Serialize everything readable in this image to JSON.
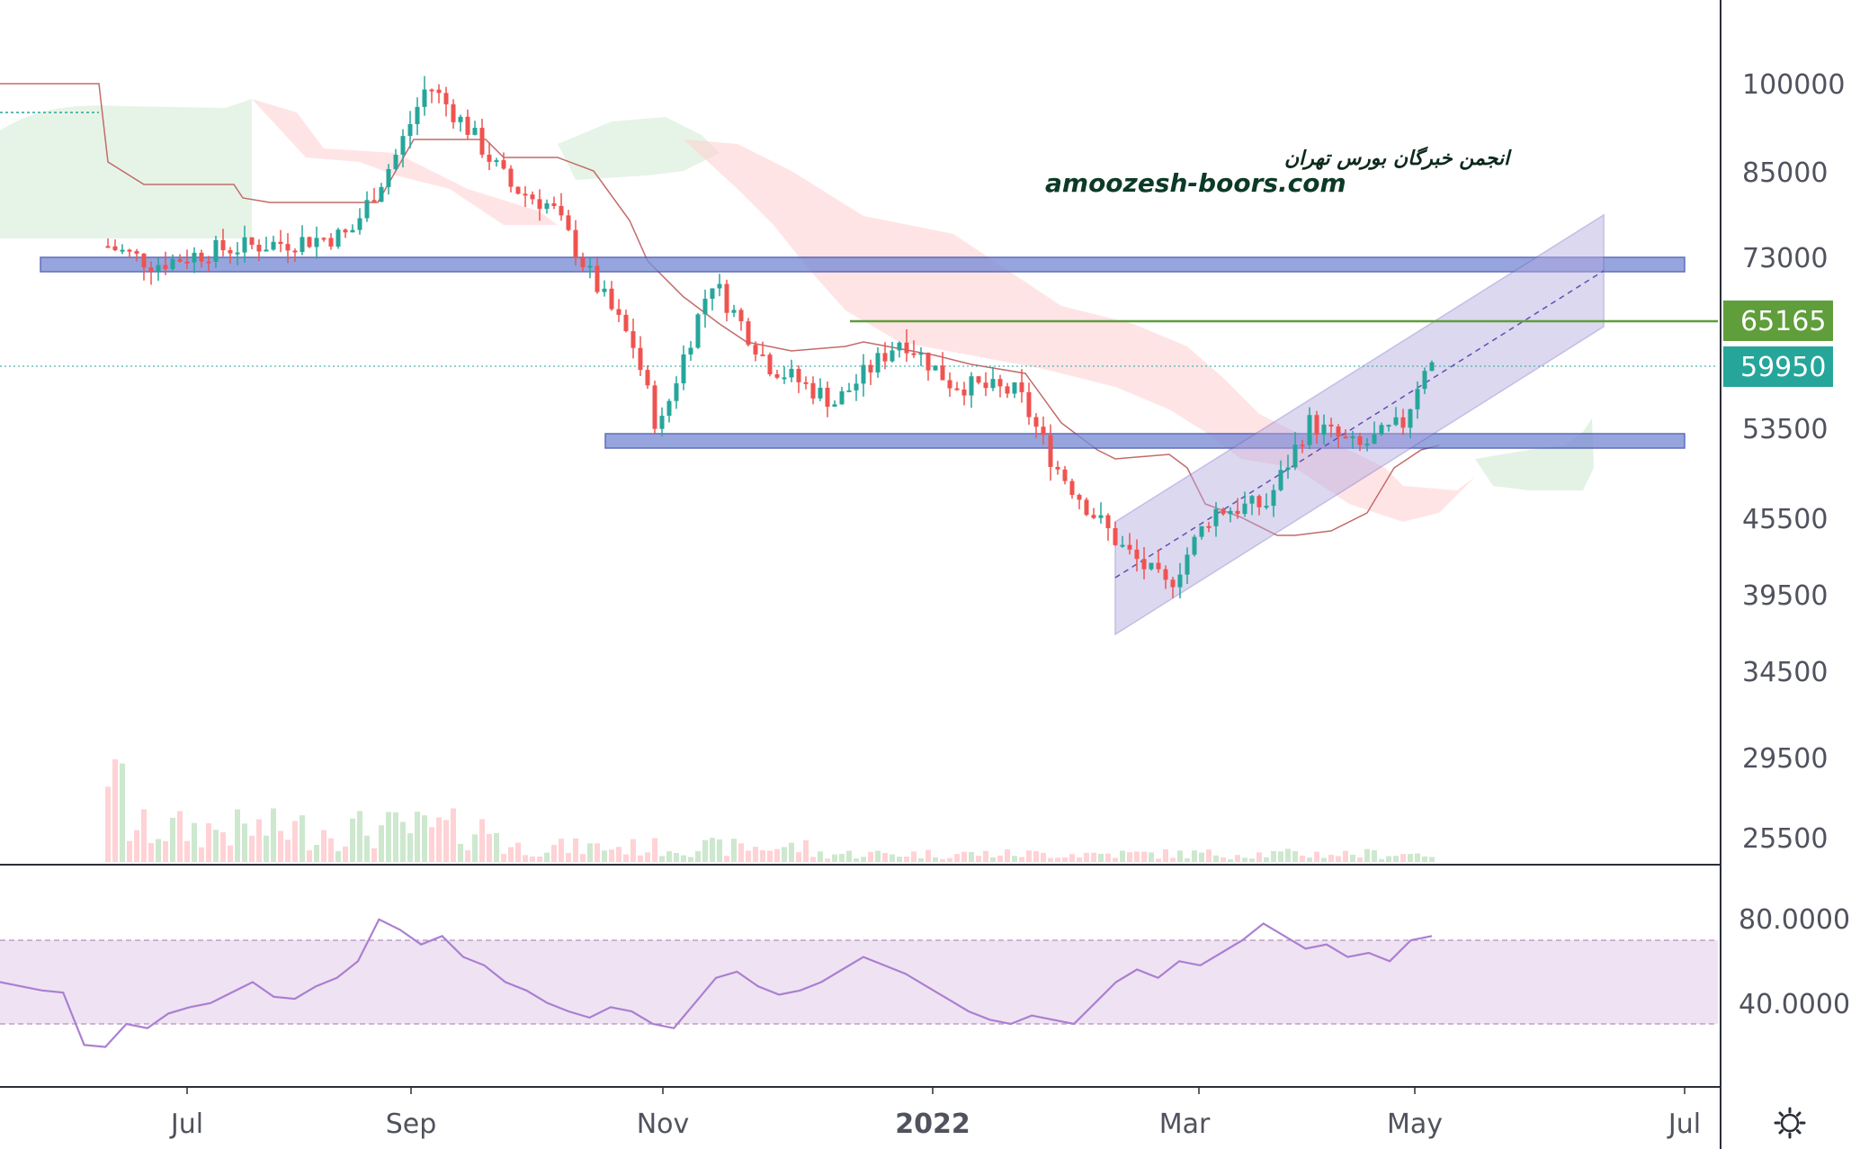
{
  "watermark": {
    "line1": "انجمن خبرگان بورس تهران",
    "line2": "amoozesh-boors.com"
  },
  "colors": {
    "up": "#26a69a",
    "down": "#ef5350",
    "cloud_bull": "#c8e6c9",
    "cloud_bear": "#ffcdd2",
    "zone_fill": "#7c8fd6",
    "zone_stroke": "#3a4ba8",
    "channel_fill": "#b3a9e0",
    "channel_stroke": "#7b6fc9",
    "resistance": "#5f9e3a",
    "last_price": "#26a69a",
    "rsi_line": "#ab7fd1",
    "rsi_band": "#efe3f3",
    "kijun": "#c26b6b"
  },
  "settings_icon": "gear-icon",
  "chart_data": {
    "type": "candlestick",
    "x_axis": {
      "ticks": [
        "Jul",
        "Sep",
        "Nov",
        "2022",
        "Mar",
        "May",
        "Jul"
      ]
    },
    "price_axis": {
      "scale": "log",
      "ticks": [
        "100000",
        "85000",
        "73000",
        "53500",
        "45500",
        "39500",
        "34500",
        "29500",
        "25500"
      ]
    },
    "price_series": [
      {
        "date": "2021-06",
        "price": 75000
      },
      {
        "date": "2021-06-20",
        "price": 72000
      },
      {
        "date": "2021-07-10",
        "price": 74000
      },
      {
        "date": "2021-07-30",
        "price": 75000
      },
      {
        "date": "2021-08-15",
        "price": 76000
      },
      {
        "date": "2021-08-28",
        "price": 88000
      },
      {
        "date": "2021-09-05",
        "price": 100000
      },
      {
        "date": "2021-09-15",
        "price": 92000
      },
      {
        "date": "2021-09-25",
        "price": 83000
      },
      {
        "date": "2021-10-05",
        "price": 80000
      },
      {
        "date": "2021-10-15",
        "price": 70000
      },
      {
        "date": "2021-10-25",
        "price": 62000
      },
      {
        "date": "2021-10-31",
        "price": 53000
      },
      {
        "date": "2021-11-05",
        "price": 60000
      },
      {
        "date": "2021-11-12",
        "price": 70000
      },
      {
        "date": "2021-11-25",
        "price": 60000
      },
      {
        "date": "2021-12-10",
        "price": 56000
      },
      {
        "date": "2021-12-25",
        "price": 63000
      },
      {
        "date": "2022-01-05",
        "price": 58000
      },
      {
        "date": "2022-01-20",
        "price": 57000
      },
      {
        "date": "2022-01-28",
        "price": 50000
      },
      {
        "date": "2022-02-05",
        "price": 46000
      },
      {
        "date": "2022-02-12",
        "price": 43000
      },
      {
        "date": "2022-02-22",
        "price": 40000
      },
      {
        "date": "2022-03-05",
        "price": 46000
      },
      {
        "date": "2022-03-20",
        "price": 46500
      },
      {
        "date": "2022-04-01",
        "price": 54000
      },
      {
        "date": "2022-04-15",
        "price": 51500
      },
      {
        "date": "2022-04-28",
        "price": 54000
      },
      {
        "date": "2022-05-03",
        "price": 59950
      }
    ],
    "support_resistance_zones": [
      {
        "price_top": 72500,
        "price_bottom": 71000,
        "from": "2021-06",
        "to": "2022-07"
      },
      {
        "price_top": 52500,
        "price_bottom": 51500,
        "from": "2021-10-20",
        "to": "2022-07"
      }
    ],
    "resistance_line": {
      "price": 65165,
      "label": "65165"
    },
    "last_price": {
      "price": 59950,
      "label": "59950"
    },
    "channel": {
      "from": "2022-02",
      "to": "2022-06",
      "upper_start": 45000,
      "upper_end": 78000,
      "lower_start": 37000,
      "lower_end": 65000
    },
    "volume_note": "volume histogram shown at bottom of price pane",
    "rsi": {
      "ticks": [
        "80.0000",
        "40.0000"
      ],
      "band": [
        70,
        30
      ],
      "values": [
        50,
        48,
        46,
        45,
        20,
        19,
        30,
        28,
        35,
        38,
        40,
        45,
        50,
        43,
        42,
        48,
        52,
        60,
        80,
        75,
        68,
        72,
        62,
        58,
        50,
        46,
        40,
        36,
        33,
        38,
        36,
        30,
        28,
        40,
        52,
        55,
        48,
        44,
        46,
        50,
        56,
        62,
        58,
        54,
        48,
        42,
        36,
        32,
        30,
        34,
        32,
        30,
        40,
        50,
        56,
        52,
        60,
        58,
        64,
        70,
        78,
        72,
        66,
        68,
        62,
        64,
        60,
        70,
        72
      ]
    }
  }
}
